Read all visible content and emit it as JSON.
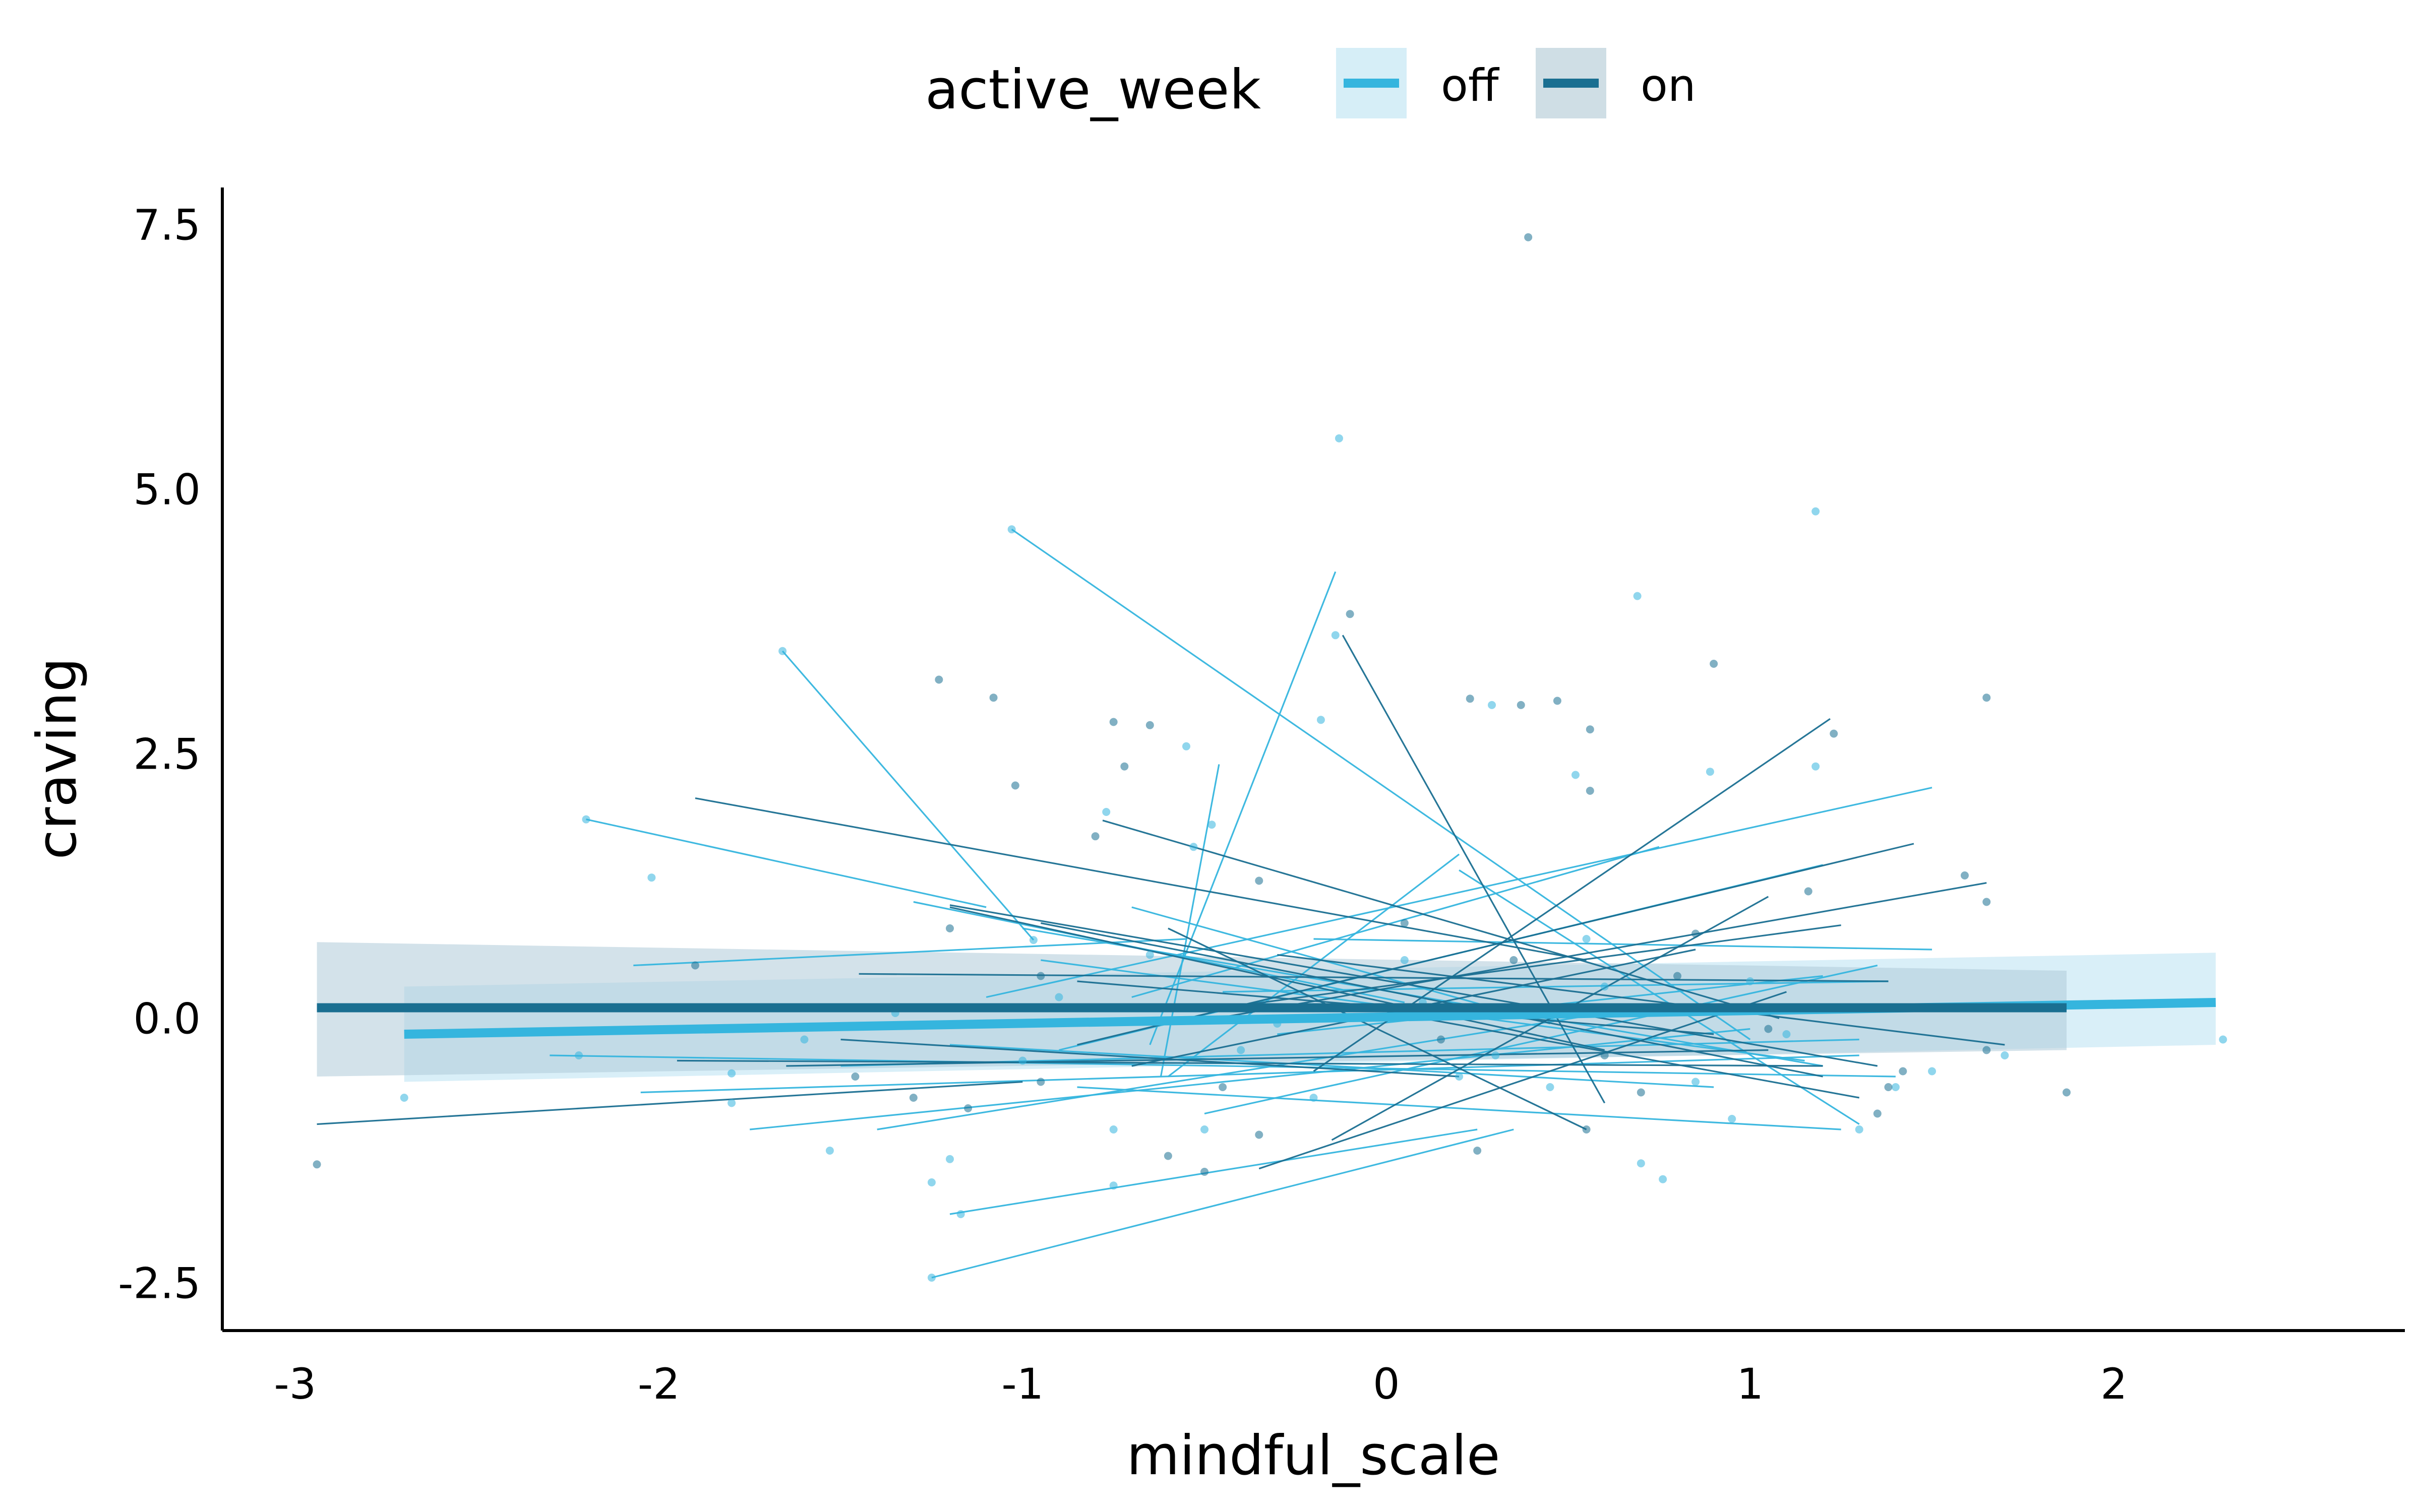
{
  "chart_data": {
    "type": "scatter",
    "title": "",
    "xlabel": "mindful_scale",
    "ylabel": "craving",
    "xlim": [
      -3.2,
      2.8
    ],
    "ylim": [
      -2.95,
      7.85
    ],
    "x_ticks": [
      -3,
      -2,
      -1,
      0,
      1,
      2
    ],
    "x_tick_labels": [
      "-3",
      "-2",
      "-1",
      "0",
      "1",
      "2"
    ],
    "y_ticks": [
      -2.5,
      0.0,
      2.5,
      5.0,
      7.5
    ],
    "y_tick_labels": [
      "-2.5",
      "0.0",
      "2.5",
      "5.0",
      "7.5"
    ],
    "grid": false,
    "legend": {
      "title": "active_week",
      "position": "top",
      "entries": [
        {
          "label": "off",
          "color": "#35b5de",
          "fill": "#d6eef7"
        },
        {
          "label": "on",
          "color": "#1a6f91",
          "fill": "#cfdee5"
        }
      ]
    },
    "series": [
      {
        "name": "off",
        "color": "#35b5de",
        "fit_line": {
          "x": [
            -2.7,
            2.28
          ],
          "y": [
            -0.15,
            0.15
          ]
        },
        "ribbon": {
          "x": [
            -2.7,
            2.28
          ],
          "lower": [
            -0.6,
            -0.25
          ],
          "upper": [
            0.3,
            0.62
          ]
        },
        "points": [
          [
            -2.2,
            1.88
          ],
          [
            -2.02,
            1.33
          ],
          [
            -1.66,
            3.47
          ],
          [
            -1.03,
            4.62
          ],
          [
            -0.97,
            0.74
          ],
          [
            -0.13,
            5.48
          ],
          [
            -0.14,
            3.62
          ],
          [
            0.69,
            3.99
          ],
          [
            1.18,
            4.79
          ],
          [
            1.18,
            2.38
          ],
          [
            -0.77,
            1.95
          ],
          [
            -0.55,
            2.57
          ],
          [
            -0.48,
            1.83
          ],
          [
            -0.53,
            1.62
          ],
          [
            -0.18,
            2.82
          ],
          [
            0.29,
            2.96
          ],
          [
            0.52,
            2.3
          ],
          [
            0.89,
            2.33
          ],
          [
            2.3,
            -0.2
          ],
          [
            1.7,
            -0.35
          ],
          [
            -2.7,
            -0.75
          ],
          [
            -2.22,
            -0.35
          ],
          [
            -1.8,
            -0.52
          ],
          [
            -1.6,
            -0.2
          ],
          [
            -1.53,
            -1.25
          ],
          [
            -1.2,
            -1.33
          ],
          [
            -1.25,
            -1.55
          ],
          [
            -1.17,
            -1.85
          ],
          [
            -1.25,
            -2.45
          ],
          [
            -0.75,
            -1.05
          ],
          [
            -0.75,
            -1.58
          ],
          [
            -0.5,
            -1.05
          ],
          [
            0.7,
            -1.37
          ],
          [
            0.76,
            -1.52
          ],
          [
            0.45,
            -0.65
          ],
          [
            0.2,
            -0.55
          ],
          [
            -0.3,
            -0.05
          ],
          [
            0.1,
            0.15
          ],
          [
            0.6,
            0.3
          ],
          [
            1.4,
            -0.65
          ],
          [
            1.3,
            -1.05
          ],
          [
            -1.8,
            -0.8
          ],
          [
            -1.0,
            -0.4
          ],
          [
            -0.4,
            -0.3
          ],
          [
            0.3,
            -0.35
          ],
          [
            0.85,
            -0.6
          ],
          [
            1.5,
            -0.5
          ],
          [
            -0.9,
            0.2
          ],
          [
            1.0,
            0.35
          ],
          [
            -1.35,
            0.05
          ],
          [
            -0.65,
            0.6
          ],
          [
            0.05,
            0.55
          ],
          [
            0.55,
            0.75
          ],
          [
            1.1,
            -0.15
          ],
          [
            -0.2,
            -0.75
          ],
          [
            0.95,
            -0.95
          ]
        ],
        "subject_lines": [
          [
            -2.2,
            1.88,
            -1.1,
            1.05
          ],
          [
            -1.66,
            3.47,
            -0.97,
            0.74
          ],
          [
            -1.03,
            4.62,
            1.0,
            -0.2
          ],
          [
            -1.25,
            -2.45,
            0.35,
            -1.05
          ],
          [
            -1.2,
            -1.85,
            0.25,
            -1.05
          ],
          [
            -1.4,
            -1.05,
            0.6,
            0.05
          ],
          [
            -0.65,
            -0.25,
            -0.14,
            4.22
          ],
          [
            -0.62,
            -0.55,
            -0.46,
            2.4
          ],
          [
            -2.07,
            0.5,
            -0.55,
            0.75
          ],
          [
            -1.3,
            1.1,
            0.05,
            0.15
          ],
          [
            -1.1,
            0.2,
            1.5,
            2.18
          ],
          [
            -0.9,
            -0.3,
            1.2,
            1.45
          ],
          [
            -0.7,
            0.2,
            0.75,
            1.62
          ],
          [
            -0.6,
            -0.55,
            0.2,
            1.55
          ],
          [
            -0.5,
            -0.9,
            1.35,
            0.5
          ],
          [
            -2.3,
            -0.35,
            1.4,
            -0.55
          ],
          [
            -2.05,
            -0.7,
            1.3,
            -0.35
          ],
          [
            -1.75,
            -1.05,
            1.0,
            -0.1
          ],
          [
            -0.85,
            -0.65,
            1.25,
            -1.05
          ],
          [
            0.2,
            1.4,
            1.3,
            -1.0
          ],
          [
            -0.7,
            1.05,
            0.45,
            -0.05
          ],
          [
            -0.95,
            0.55,
            1.15,
            -0.4
          ],
          [
            -0.2,
            0.75,
            1.5,
            0.65
          ],
          [
            -1.5,
            -0.45,
            1.3,
            -0.2
          ],
          [
            -1.0,
            0.85,
            1.2,
            -0.45
          ],
          [
            -0.3,
            -0.15,
            1.2,
            0.4
          ],
          [
            -1.2,
            -0.25,
            0.9,
            -0.65
          ],
          [
            -0.45,
            0.25,
            1.38,
            0.35
          ]
        ]
      },
      {
        "name": "on",
        "color": "#1a6f91",
        "fit_line": {
          "x": [
            -2.94,
            1.87
          ],
          "y": [
            0.1,
            0.1
          ]
        },
        "ribbon": {
          "x": [
            -2.94,
            1.87
          ],
          "lower": [
            -0.55,
            -0.3
          ],
          "upper": [
            0.72,
            0.45
          ]
        },
        "points": [
          [
            0.39,
            7.38
          ],
          [
            -0.1,
            3.82
          ],
          [
            0.9,
            3.35
          ],
          [
            1.65,
            3.03
          ],
          [
            -1.23,
            3.2
          ],
          [
            -1.08,
            3.03
          ],
          [
            -1.02,
            2.2
          ],
          [
            -0.75,
            2.8
          ],
          [
            -0.65,
            2.77
          ],
          [
            -0.72,
            2.38
          ],
          [
            0.47,
            3.0
          ],
          [
            0.23,
            3.02
          ],
          [
            0.37,
            2.96
          ],
          [
            0.56,
            2.73
          ],
          [
            1.23,
            2.69
          ],
          [
            0.56,
            2.15
          ],
          [
            1.65,
            1.1
          ],
          [
            1.59,
            1.35
          ],
          [
            1.16,
            1.2
          ],
          [
            -2.94,
            -1.38
          ],
          [
            -1.9,
            0.5
          ],
          [
            -1.46,
            -0.55
          ],
          [
            -1.15,
            -0.85
          ],
          [
            -0.5,
            -1.45
          ],
          [
            -0.95,
            -0.6
          ],
          [
            -0.6,
            -1.3
          ],
          [
            -0.35,
            -1.1
          ],
          [
            0.25,
            -1.25
          ],
          [
            0.55,
            -1.05
          ],
          [
            0.7,
            -0.7
          ],
          [
            1.35,
            -0.9
          ],
          [
            1.38,
            -0.65
          ],
          [
            1.42,
            -0.5
          ],
          [
            1.65,
            -0.3
          ],
          [
            1.87,
            -0.7
          ],
          [
            -1.2,
            0.85
          ],
          [
            -0.95,
            0.4
          ],
          [
            -0.35,
            1.3
          ],
          [
            0.05,
            0.9
          ],
          [
            0.35,
            0.55
          ],
          [
            0.8,
            0.4
          ],
          [
            -0.8,
            1.72
          ],
          [
            -0.2,
            0.0
          ],
          [
            0.15,
            -0.2
          ],
          [
            0.6,
            -0.35
          ],
          [
            1.05,
            -0.1
          ],
          [
            -1.3,
            -0.75
          ],
          [
            -0.45,
            -0.65
          ],
          [
            0.85,
            0.8
          ]
        ],
        "subject_lines": [
          [
            -2.94,
            -1.0,
            -1.0,
            -0.6
          ],
          [
            -1.9,
            2.08,
            0.55,
            0.55
          ],
          [
            -0.12,
            3.62,
            0.6,
            -0.8
          ],
          [
            -0.78,
            1.87,
            1.08,
            0.0
          ],
          [
            -1.2,
            1.05,
            0.6,
            -0.3
          ],
          [
            -1.95,
            -0.4,
            1.2,
            -0.45
          ],
          [
            -1.45,
            0.42,
            1.38,
            0.35
          ],
          [
            -0.55,
            -0.05,
            1.65,
            1.28
          ],
          [
            -0.2,
            -0.5,
            1.22,
            2.83
          ],
          [
            -0.35,
            -1.42,
            1.1,
            0.25
          ],
          [
            -0.6,
            0.85,
            0.55,
            -1.05
          ],
          [
            -1.2,
            1.07,
            1.35,
            -0.45
          ],
          [
            -0.85,
            -0.25,
            1.45,
            1.65
          ],
          [
            -0.45,
            0.1,
            1.25,
            0.88
          ],
          [
            -0.95,
            0.9,
            1.2,
            -0.55
          ],
          [
            -1.5,
            -0.2,
            0.2,
            -0.55
          ],
          [
            -0.7,
            -0.45,
            0.85,
            0.65
          ],
          [
            0.1,
            0.0,
            1.3,
            -0.75
          ],
          [
            -0.3,
            0.6,
            1.7,
            -0.25
          ],
          [
            -1.65,
            -0.45,
            1.05,
            -0.3
          ],
          [
            -0.15,
            -1.15,
            1.05,
            1.15
          ],
          [
            -0.85,
            0.35,
            0.9,
            -0.15
          ]
        ]
      }
    ]
  }
}
